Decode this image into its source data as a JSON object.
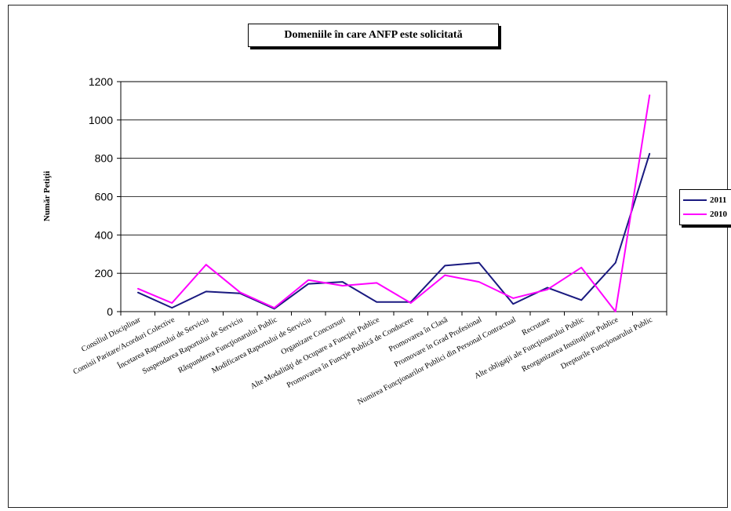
{
  "chart_data": {
    "type": "line",
    "title": "Domeniile în care ANFP este solicitată",
    "xlabel": "",
    "ylabel": "Număr Petiţii",
    "ylim": [
      0,
      1200
    ],
    "yticks": [
      0,
      200,
      400,
      600,
      800,
      1000,
      1200
    ],
    "grid": true,
    "legend_position": "right",
    "categories": [
      "Consiliul Disciplinar",
      "Comisii Paritare/Acorduri Colective",
      "Încetarea Raportului de Serviciu",
      "Suspendarea Raportului de Serviciu",
      "Răspunderea Funcţionarului Public",
      "Modificarea Raportului de Serviciu",
      "Organizare Concursuri",
      "Alte Modalităţi de Ocupare a Funcţiei Publice",
      "Promovarea în Funcţie Publică de Conducere",
      "Promovarea în Clasă",
      "Promovare în Grad Profesional",
      "Numirea Funcţionarilor Publici din Personal Contractual",
      "Recrutare",
      "Alte obligaţii ale Funcţionarului Public",
      "Reorganizarea Instituţiilor Publice",
      "Drepturile Funcţionarului Public"
    ],
    "series": [
      {
        "name": "2011",
        "color": "#1a1a80",
        "values": [
          100,
          20,
          105,
          95,
          15,
          145,
          155,
          50,
          50,
          240,
          255,
          40,
          125,
          60,
          255,
          825
        ]
      },
      {
        "name": "2010",
        "color": "#ff00ff",
        "values": [
          120,
          45,
          245,
          100,
          20,
          165,
          135,
          150,
          45,
          190,
          155,
          70,
          115,
          230,
          0,
          1130
        ]
      }
    ]
  }
}
